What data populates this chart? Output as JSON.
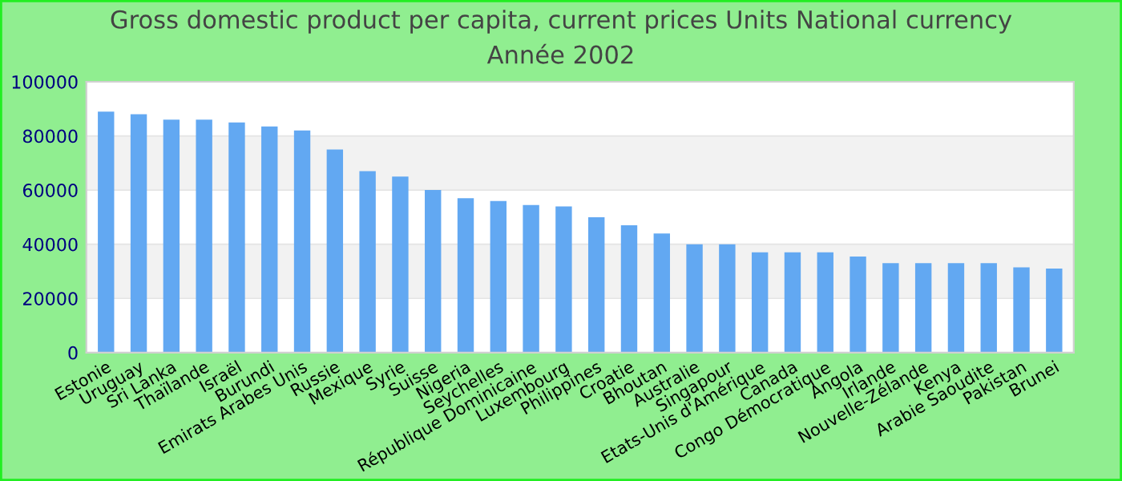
{
  "chart_data": {
    "type": "bar",
    "title": "Gross domestic product per capita, current prices Units National currency",
    "subtitle": "Année 2002",
    "categories": [
      "Estonie",
      "Uruguay",
      "Sri Lanka",
      "Thaïlande",
      "Israël",
      "Burundi",
      "Emirats Arabes Unis",
      "Russie",
      "Mexique",
      "Syrie",
      "Suisse",
      "Nigeria",
      "Seychelles",
      "République Dominicaine",
      "Luxembourg",
      "Philippines",
      "Croatie",
      "Bhoutan",
      "Australie",
      "Singapour",
      "Etats-Unis d'Amérique",
      "Canada",
      "Congo Démocratique",
      "Angola",
      "Irlande",
      "Nouvelle-Zélande",
      "Kenya",
      "Arabie Saoudite",
      "Pakistan",
      "Brunei"
    ],
    "values": [
      89000,
      88000,
      86000,
      86000,
      85000,
      83500,
      82000,
      75000,
      67000,
      65000,
      60000,
      57000,
      56000,
      54500,
      54000,
      50000,
      47000,
      44000,
      40000,
      40000,
      37000,
      37000,
      37000,
      35500,
      33000,
      33000,
      33000,
      33000,
      31500,
      31000
    ],
    "color": "#62a8f2",
    "ylim": [
      0,
      100000
    ],
    "yticks": [
      0,
      20000,
      40000,
      60000,
      80000,
      100000
    ],
    "grid": "y",
    "legend": false
  }
}
